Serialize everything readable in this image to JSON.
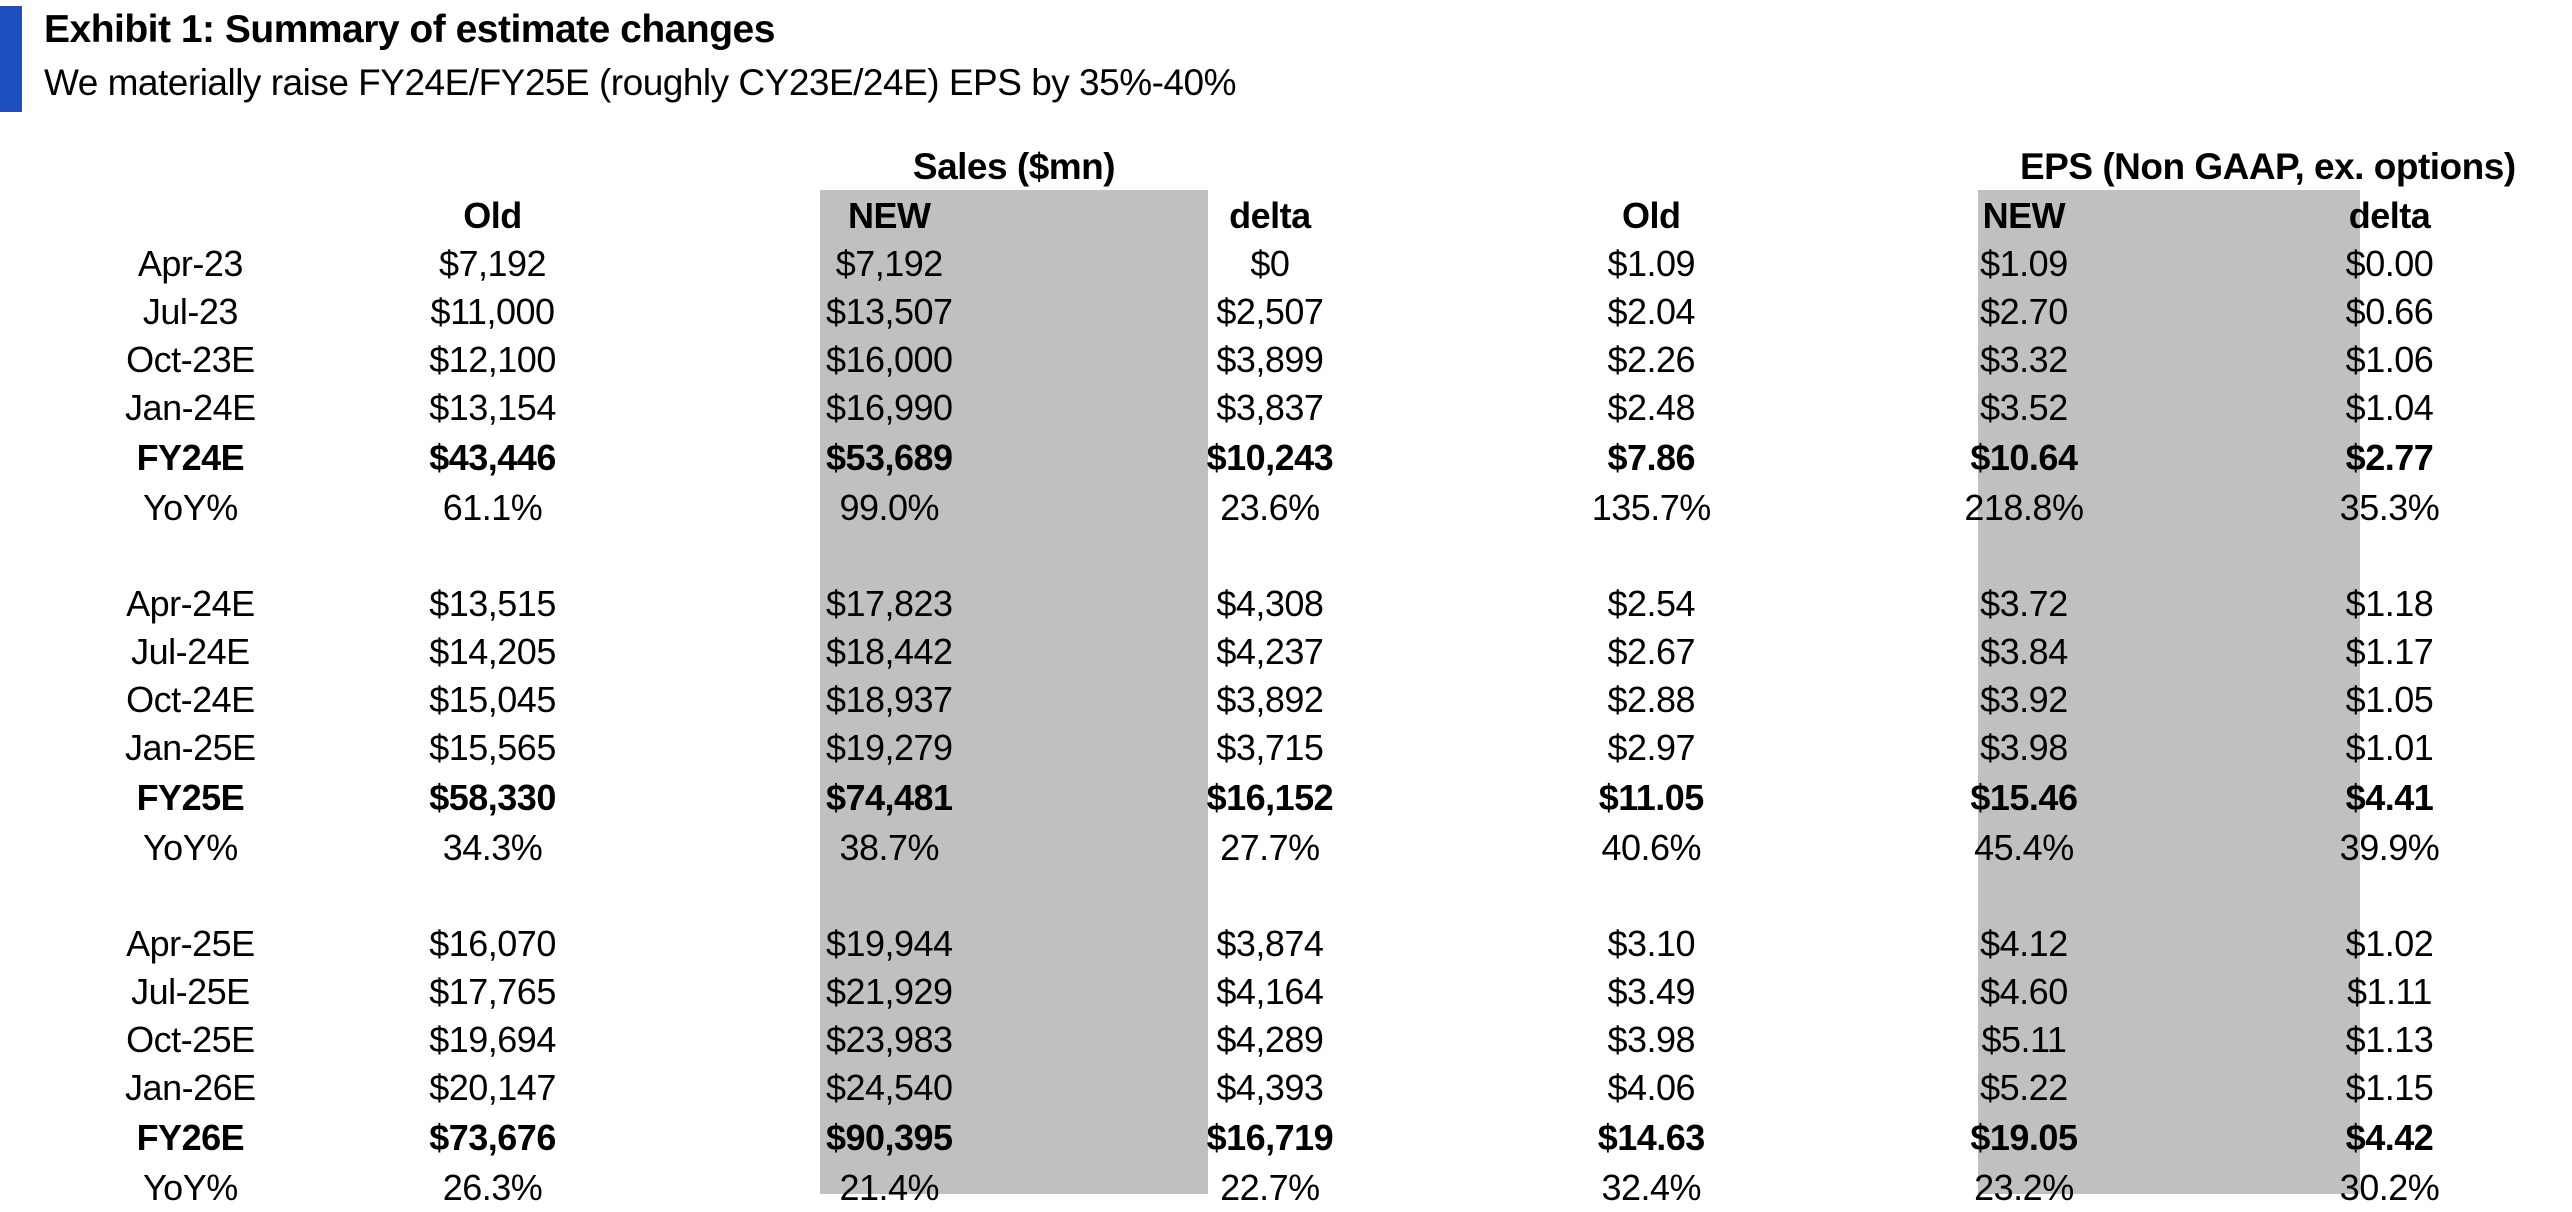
{
  "exhibit": {
    "title": "Exhibit 1: Summary of estimate changes",
    "subtitle": "We materially raise FY24E/FY25E (roughly CY23E/24E) EPS by 35%-40%",
    "accent_color": "#1F4FBF",
    "shade_color": "#C0C0C0"
  },
  "groups": {
    "sales": "Sales ($mn)",
    "eps": "EPS (Non GAAP, ex. options)"
  },
  "columns": {
    "sales_old": "Old",
    "sales_new": "NEW",
    "sales_delta": "delta",
    "eps_old": "Old",
    "eps_new": "NEW",
    "eps_delta": "delta"
  },
  "rows": [
    {
      "label": "Apr-23",
      "cells": [
        "$7,192",
        "$7,192",
        "$0",
        "$1.09",
        "$1.09",
        "$0.00"
      ],
      "bold": false
    },
    {
      "label": "Jul-23",
      "cells": [
        "$11,000",
        "$13,507",
        "$2,507",
        "$2.04",
        "$2.70",
        "$0.66"
      ],
      "bold": false
    },
    {
      "label": "Oct-23E",
      "cells": [
        "$12,100",
        "$16,000",
        "$3,899",
        "$2.26",
        "$3.32",
        "$1.06"
      ],
      "bold": false
    },
    {
      "label": "Jan-24E",
      "cells": [
        "$13,154",
        "$16,990",
        "$3,837",
        "$2.48",
        "$3.52",
        "$1.04"
      ],
      "bold": false
    },
    {
      "label": "FY24E",
      "cells": [
        "$43,446",
        "$53,689",
        "$10,243",
        "$7.86",
        "$10.64",
        "$2.77"
      ],
      "bold": true
    },
    {
      "label": "YoY%",
      "cells": [
        "61.1%",
        "99.0%",
        "23.6%",
        "135.7%",
        "218.8%",
        "35.3%"
      ],
      "bold": false
    },
    {
      "label": "",
      "cells": [
        "",
        "",
        "",
        "",
        "",
        ""
      ],
      "bold": false,
      "spacer": true
    },
    {
      "label": "Apr-24E",
      "cells": [
        "$13,515",
        "$17,823",
        "$4,308",
        "$2.54",
        "$3.72",
        "$1.18"
      ],
      "bold": false
    },
    {
      "label": "Jul-24E",
      "cells": [
        "$14,205",
        "$18,442",
        "$4,237",
        "$2.67",
        "$3.84",
        "$1.17"
      ],
      "bold": false
    },
    {
      "label": "Oct-24E",
      "cells": [
        "$15,045",
        "$18,937",
        "$3,892",
        "$2.88",
        "$3.92",
        "$1.05"
      ],
      "bold": false
    },
    {
      "label": "Jan-25E",
      "cells": [
        "$15,565",
        "$19,279",
        "$3,715",
        "$2.97",
        "$3.98",
        "$1.01"
      ],
      "bold": false
    },
    {
      "label": "FY25E",
      "cells": [
        "$58,330",
        "$74,481",
        "$16,152",
        "$11.05",
        "$15.46",
        "$4.41"
      ],
      "bold": true
    },
    {
      "label": "YoY%",
      "cells": [
        "34.3%",
        "38.7%",
        "27.7%",
        "40.6%",
        "45.4%",
        "39.9%"
      ],
      "bold": false
    },
    {
      "label": "",
      "cells": [
        "",
        "",
        "",
        "",
        "",
        ""
      ],
      "bold": false,
      "spacer": true
    },
    {
      "label": "Apr-25E",
      "cells": [
        "$16,070",
        "$19,944",
        "$3,874",
        "$3.10",
        "$4.12",
        "$1.02"
      ],
      "bold": false
    },
    {
      "label": "Jul-25E",
      "cells": [
        "$17,765",
        "$21,929",
        "$4,164",
        "$3.49",
        "$4.60",
        "$1.11"
      ],
      "bold": false
    },
    {
      "label": "Oct-25E",
      "cells": [
        "$19,694",
        "$23,983",
        "$4,289",
        "$3.98",
        "$5.11",
        "$1.13"
      ],
      "bold": false
    },
    {
      "label": "Jan-26E",
      "cells": [
        "$20,147",
        "$24,540",
        "$4,393",
        "$4.06",
        "$5.22",
        "$1.15"
      ],
      "bold": false
    },
    {
      "label": "FY26E",
      "cells": [
        "$73,676",
        "$90,395",
        "$16,719",
        "$14.63",
        "$19.05",
        "$4.42"
      ],
      "bold": true
    },
    {
      "label": "YoY%",
      "cells": [
        "26.3%",
        "21.4%",
        "22.7%",
        "32.4%",
        "23.2%",
        "30.2%"
      ],
      "bold": false
    }
  ]
}
